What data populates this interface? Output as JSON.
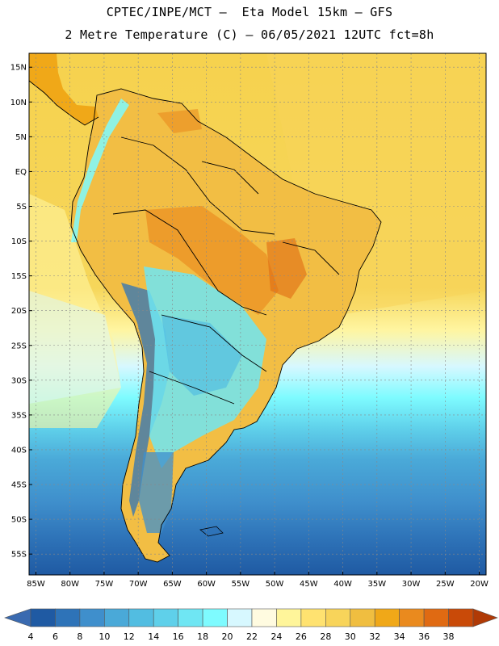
{
  "title_line1": "CPTEC/INPE/MCT –  Eta Model 15km – GFS",
  "title_line2": "2 Metre Temperature (C) – 06/05/2021 12UTC fct=8h",
  "map": {
    "lon_range": [
      -86,
      -19
    ],
    "lat_range": [
      -58,
      17
    ],
    "lat_ticks": [
      {
        "value": 15,
        "label": "15N"
      },
      {
        "value": 10,
        "label": "10N"
      },
      {
        "value": 5,
        "label": "5N"
      },
      {
        "value": 0,
        "label": "EQ"
      },
      {
        "value": -5,
        "label": "5S"
      },
      {
        "value": -10,
        "label": "10S"
      },
      {
        "value": -15,
        "label": "15S"
      },
      {
        "value": -20,
        "label": "20S"
      },
      {
        "value": -25,
        "label": "25S"
      },
      {
        "value": -30,
        "label": "30S"
      },
      {
        "value": -35,
        "label": "35S"
      },
      {
        "value": -40,
        "label": "40S"
      },
      {
        "value": -45,
        "label": "45S"
      },
      {
        "value": -50,
        "label": "50S"
      },
      {
        "value": -55,
        "label": "55S"
      }
    ],
    "lon_ticks": [
      {
        "value": -85,
        "label": "85W"
      },
      {
        "value": -80,
        "label": "80W"
      },
      {
        "value": -75,
        "label": "75W"
      },
      {
        "value": -70,
        "label": "70W"
      },
      {
        "value": -65,
        "label": "65W"
      },
      {
        "value": -60,
        "label": "60W"
      },
      {
        "value": -55,
        "label": "55W"
      },
      {
        "value": -50,
        "label": "50W"
      },
      {
        "value": -45,
        "label": "45W"
      },
      {
        "value": -40,
        "label": "40W"
      },
      {
        "value": -35,
        "label": "35W"
      },
      {
        "value": -30,
        "label": "30W"
      },
      {
        "value": -25,
        "label": "25W"
      },
      {
        "value": -20,
        "label": "20W"
      }
    ],
    "grid": true,
    "grid_color": "#888888"
  },
  "colorbar": {
    "labels": [
      "4",
      "6",
      "8",
      "10",
      "12",
      "14",
      "16",
      "18",
      "20",
      "22",
      "24",
      "26",
      "28",
      "30",
      "32",
      "34",
      "36",
      "38"
    ],
    "colors": [
      "#1f5aa3",
      "#2e73b8",
      "#3f8fcc",
      "#4aa9d8",
      "#52bde1",
      "#5fd0ea",
      "#6fe6f3",
      "#7efbff",
      "#d7f8ff",
      "#fffbe0",
      "#fff59a",
      "#ffe270",
      "#f8d45a",
      "#f0be40",
      "#f0a818",
      "#ea8a1e",
      "#e06a12",
      "#c94a08"
    ],
    "under_color": "#3a6ab0",
    "over_color": "#b03a06"
  }
}
